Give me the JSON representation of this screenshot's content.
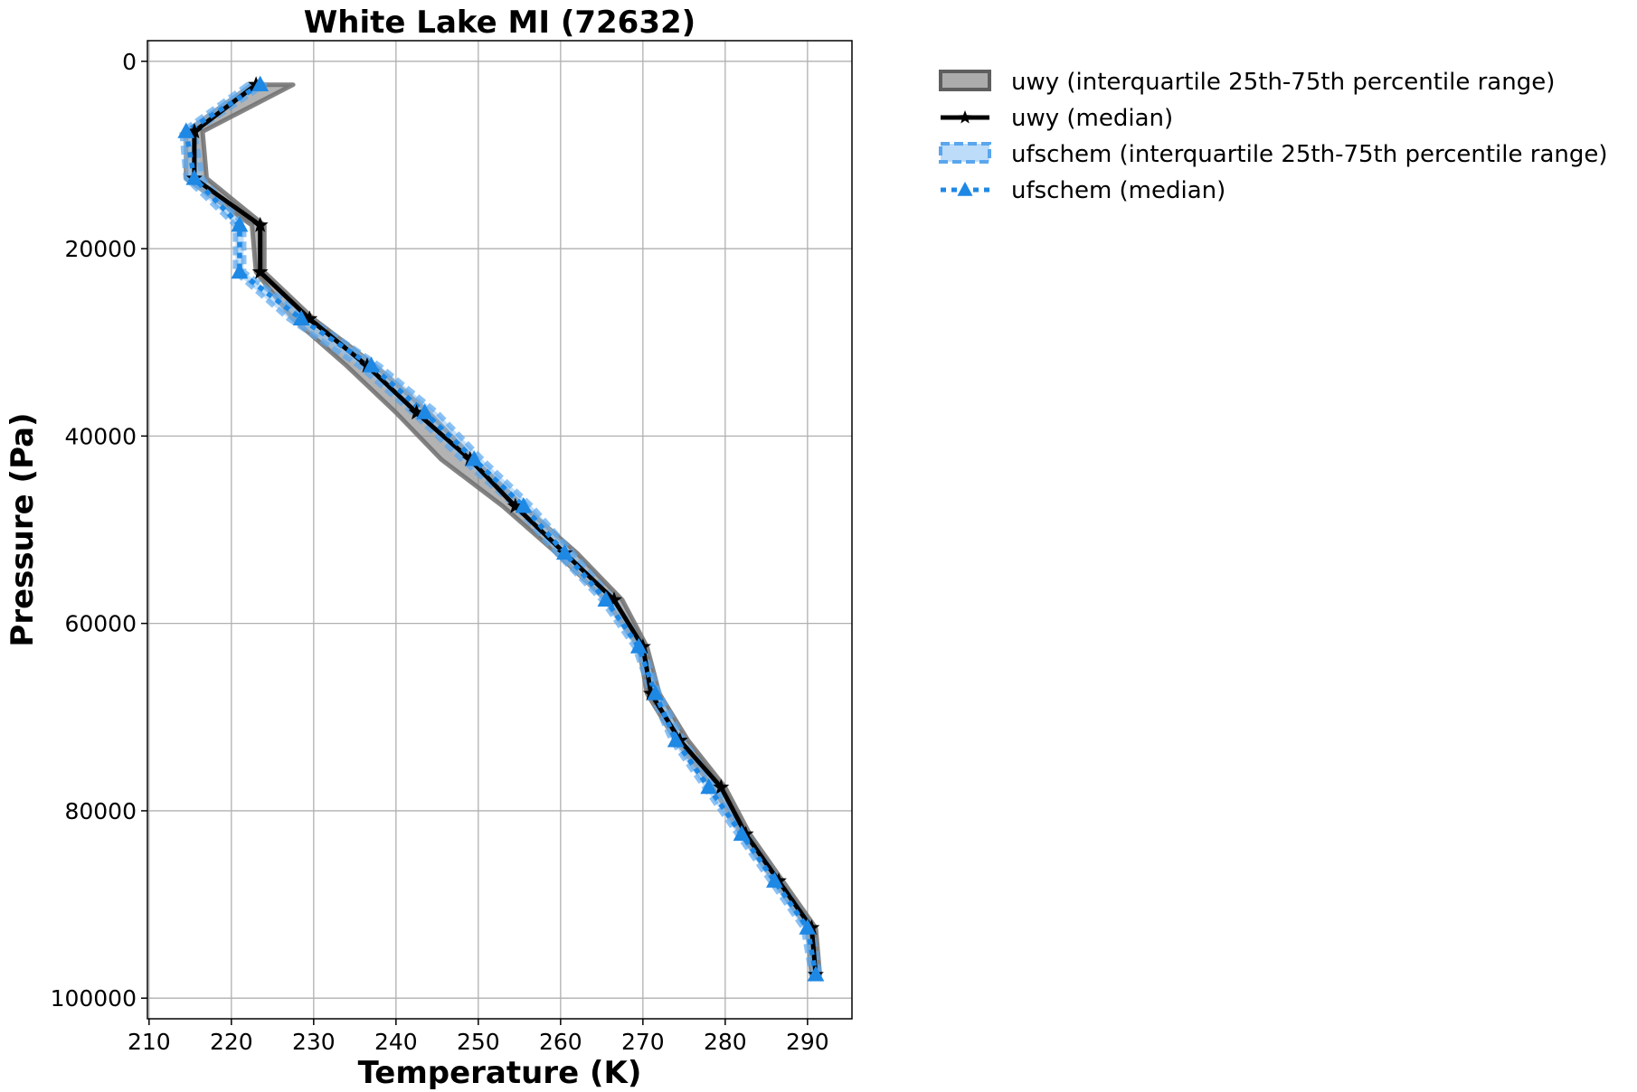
{
  "chart_data": {
    "type": "line",
    "title": "White Lake MI (72632)",
    "xlabel": "Temperature (K)",
    "ylabel": "Pressure (Pa)",
    "xlim": [
      209.8,
      295.4
    ],
    "ylim": [
      102200,
      -2200
    ],
    "y_inverted": true,
    "grid": true,
    "legend_placement": "outside upper right",
    "xticks": [
      210,
      220,
      230,
      240,
      250,
      260,
      270,
      280,
      290
    ],
    "yticks": [
      0,
      20000,
      40000,
      60000,
      80000,
      100000
    ],
    "pressure": [
      2500,
      7500,
      12500,
      17500,
      22500,
      27500,
      32500,
      37500,
      42500,
      47500,
      52500,
      57500,
      62500,
      67500,
      72500,
      77500,
      82500,
      87500,
      92500,
      97500
    ],
    "series": [
      {
        "name": "uwy (interquartile 25th-75th percentile range)",
        "kind": "band",
        "color": "#808080",
        "low": [
          222.5,
          214.5,
          214.5,
          222.5,
          223.0,
          227.5,
          234.0,
          240.0,
          245.5,
          253.0,
          259.5,
          265.5,
          269.5,
          270.5,
          274.0,
          278.5,
          282.0,
          286.0,
          290.0,
          290.5
        ],
        "high": [
          227.5,
          216.5,
          217.0,
          224.0,
          224.0,
          230.0,
          237.5,
          244.0,
          249.5,
          255.5,
          262.0,
          267.5,
          270.5,
          272.0,
          275.5,
          280.0,
          283.0,
          287.0,
          291.0,
          291.5
        ]
      },
      {
        "name": "uwy (median)",
        "kind": "line",
        "color": "#000000",
        "marker": "star",
        "values": [
          223.0,
          215.5,
          215.5,
          223.5,
          223.5,
          229.5,
          236.5,
          242.5,
          249.0,
          254.5,
          260.5,
          266.5,
          270.0,
          271.0,
          274.5,
          279.5,
          282.5,
          286.5,
          290.5,
          291.0
        ]
      },
      {
        "name": "ufschem (interquartile 25th-75th percentile range)",
        "kind": "band",
        "color": "#1e88e5",
        "low": [
          222.0,
          214.0,
          214.5,
          220.5,
          220.5,
          227.0,
          235.5,
          242.0,
          248.0,
          254.5,
          259.5,
          265.0,
          269.0,
          271.0,
          273.5,
          277.5,
          281.5,
          285.5,
          289.5,
          290.5
        ],
        "high": [
          224.0,
          215.5,
          216.5,
          221.5,
          221.5,
          229.5,
          238.0,
          245.0,
          250.5,
          256.5,
          261.5,
          266.5,
          270.0,
          272.0,
          275.0,
          279.0,
          282.5,
          286.5,
          290.5,
          291.5
        ]
      },
      {
        "name": "ufschem (median)",
        "kind": "line",
        "color": "#1e88e5",
        "marker": "triangle",
        "values": [
          223.5,
          214.5,
          215.5,
          221.0,
          221.0,
          228.5,
          237.0,
          243.5,
          249.5,
          255.5,
          260.5,
          265.5,
          269.5,
          271.5,
          274.0,
          278.0,
          282.0,
          286.0,
          290.0,
          291.0
        ]
      }
    ]
  }
}
